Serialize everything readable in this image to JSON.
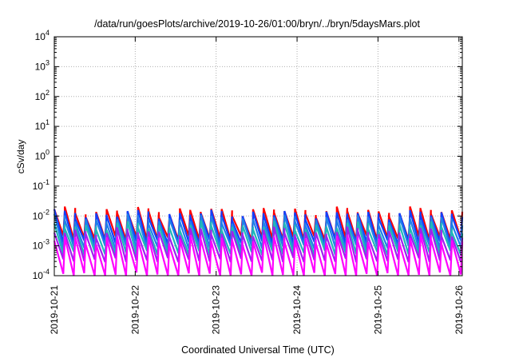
{
  "chart_data": {
    "type": "line",
    "title": "/data/run/goesPlots/archive/2019-10-26/01:00/bryn/../bryn/5daysMars.plot",
    "xlabel": "Coordinated Universal Time (UTC)",
    "ylabel": "cSv/day",
    "y_scale": "log",
    "ylim": [
      0.0001,
      10000
    ],
    "y_ticks": [
      {
        "base": "10",
        "exp": "4"
      },
      {
        "base": "10",
        "exp": "3"
      },
      {
        "base": "10",
        "exp": "2"
      },
      {
        "base": "10",
        "exp": "1"
      },
      {
        "base": "10",
        "exp": "0"
      },
      {
        "base": "10",
        "exp": "-1"
      },
      {
        "base": "10",
        "exp": "-2"
      },
      {
        "base": "10",
        "exp": "-3"
      },
      {
        "base": "10",
        "exp": "-4"
      }
    ],
    "x_range": [
      "2019-10-21",
      "2019-10-26 01:00"
    ],
    "x_ticks": [
      "2019-10-21",
      "2019-10-22",
      "2019-10-23",
      "2019-10-24",
      "2019-10-25",
      "2019-10-26"
    ],
    "grid": true,
    "cycles": 39,
    "series": [
      {
        "color": "#ff0000",
        "peak": 0.014,
        "trough": 0.0022
      },
      {
        "color": "#1040ff",
        "peak": 0.011,
        "trough": 0.0016
      },
      {
        "color": "#2080e8",
        "peak": 0.0075,
        "trough": 0.0011
      },
      {
        "color": "#20b8b8",
        "peak": 0.0045,
        "trough": 0.0007
      },
      {
        "color": "#a020f0",
        "peak": 0.0028,
        "trough": 0.0004
      },
      {
        "color": "#ff00ff",
        "peak": 0.0016,
        "trough": 0.00013
      }
    ]
  }
}
